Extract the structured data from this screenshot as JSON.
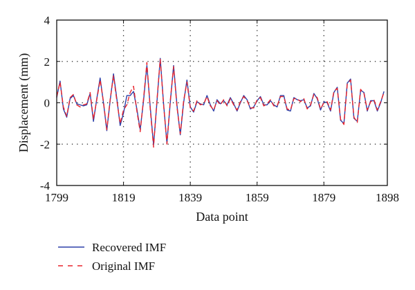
{
  "chart_data": {
    "type": "line",
    "title": "",
    "xlabel": "Data point",
    "ylabel": "Displacement (mm)",
    "xlim": [
      1799,
      1898
    ],
    "ylim": [
      -4,
      4
    ],
    "xticks": [
      1799,
      1819,
      1839,
      1859,
      1879,
      1898
    ],
    "yticks": [
      -4,
      -2,
      0,
      2,
      4
    ],
    "grid": "dotted",
    "legend_position": "below",
    "x_start": 1799,
    "series": [
      {
        "name": "Recovered IMF",
        "color": "#2c3fa8",
        "style": "solid",
        "values": [
          0.25,
          1.05,
          -0.3,
          -0.7,
          0.2,
          0.35,
          -0.05,
          -0.1,
          -0.15,
          -0.1,
          0.45,
          -0.9,
          0.2,
          1.2,
          0.0,
          -1.35,
          0.1,
          1.4,
          0.2,
          -1.1,
          -0.5,
          0.35,
          0.35,
          0.55,
          -0.3,
          -1.3,
          0.1,
          1.8,
          -0.2,
          -2.05,
          0.0,
          2.15,
          -0.05,
          -1.95,
          0.0,
          1.8,
          -0.1,
          -1.55,
          0.0,
          1.1,
          -0.2,
          -0.45,
          0.05,
          -0.05,
          -0.1,
          0.35,
          -0.1,
          -0.4,
          0.15,
          -0.05,
          0.1,
          -0.1,
          0.25,
          -0.05,
          -0.4,
          0.0,
          0.35,
          0.15,
          -0.3,
          -0.2,
          0.1,
          0.3,
          -0.1,
          -0.1,
          0.1,
          -0.1,
          -0.2,
          0.35,
          0.35,
          -0.35,
          -0.4,
          0.25,
          0.15,
          0.1,
          0.15,
          -0.25,
          -0.15,
          0.45,
          0.2,
          -0.35,
          0.05,
          0.0,
          -0.4,
          0.5,
          0.75,
          -0.85,
          -1.0,
          0.95,
          1.15,
          -0.75,
          -0.9,
          0.6,
          0.5,
          -0.4,
          0.1,
          0.1,
          -0.4,
          0.0,
          0.55
        ]
      },
      {
        "name": "Original IMF",
        "color": "#e8242c",
        "style": "dashed",
        "values": [
          0.3,
          1.0,
          -0.2,
          -0.65,
          0.25,
          0.4,
          -0.1,
          -0.2,
          -0.1,
          -0.05,
          0.5,
          -0.8,
          0.15,
          1.1,
          0.05,
          -1.3,
          0.15,
          1.3,
          0.1,
          -1.0,
          -0.35,
          -0.1,
          0.5,
          0.8,
          -0.4,
          -1.4,
          0.2,
          1.95,
          -0.3,
          -2.15,
          0.1,
          2.1,
          -0.1,
          -2.0,
          0.1,
          1.75,
          -0.2,
          -1.5,
          0.1,
          1.0,
          -0.25,
          -0.4,
          0.1,
          -0.1,
          -0.05,
          0.3,
          -0.15,
          -0.35,
          0.1,
          -0.1,
          0.15,
          -0.15,
          0.2,
          -0.1,
          -0.35,
          0.05,
          0.3,
          0.1,
          -0.25,
          -0.25,
          0.15,
          0.25,
          -0.15,
          -0.05,
          0.15,
          -0.15,
          -0.15,
          0.3,
          0.3,
          -0.3,
          -0.35,
          0.2,
          0.2,
          0.05,
          0.2,
          -0.3,
          -0.1,
          0.4,
          0.25,
          -0.3,
          0.0,
          0.05,
          -0.35,
          0.55,
          0.7,
          -0.8,
          -1.05,
          0.9,
          1.1,
          -0.7,
          -0.95,
          0.65,
          0.45,
          -0.35,
          0.05,
          0.15,
          -0.35,
          0.05,
          0.5
        ]
      }
    ]
  }
}
